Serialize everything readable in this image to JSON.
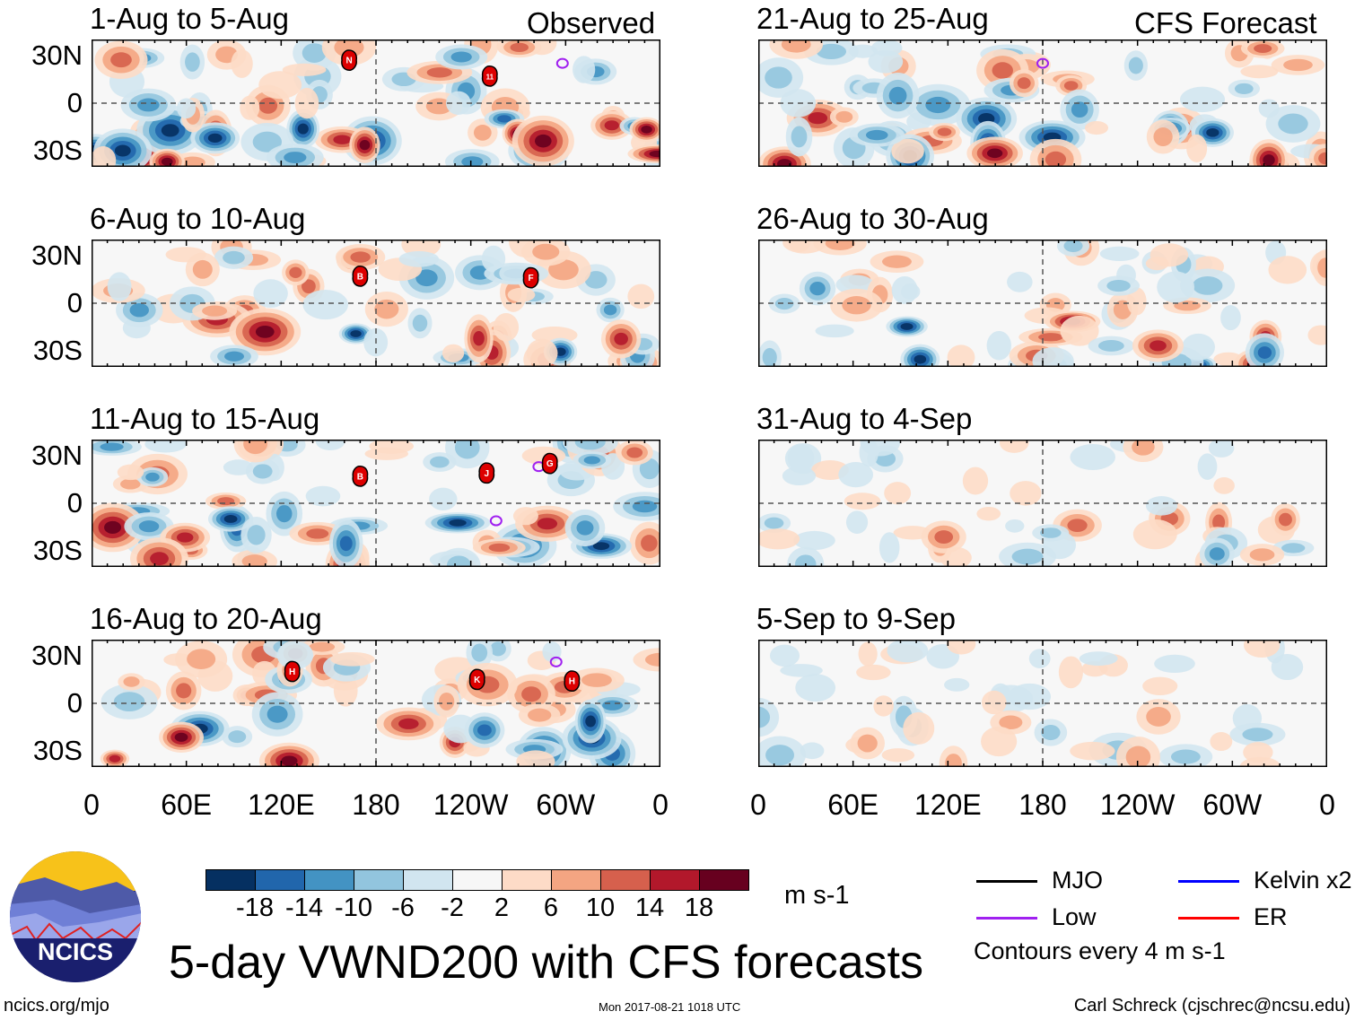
{
  "figure_title": "5-day VWND200 with CFS forecasts",
  "column_labels": {
    "observed": "Observed",
    "forecast": "CFS Forecast"
  },
  "panels": [
    {
      "title": "1-Aug to 5-Aug",
      "group": "observed",
      "amplitude": 1.0,
      "storms": [
        {
          "label": "N",
          "lon": 163,
          "lat": 27
        },
        {
          "label": "11",
          "lon": 252,
          "lat": 17
        }
      ],
      "lows": [
        {
          "lon": 298,
          "lat": 25
        }
      ]
    },
    {
      "title": "6-Aug to 10-Aug",
      "group": "observed",
      "amplitude": 1.0,
      "storms": [
        {
          "label": "B",
          "lon": 170,
          "lat": 17
        },
        {
          "label": "F",
          "lon": 278,
          "lat": 16
        }
      ],
      "lows": []
    },
    {
      "title": "11-Aug to 15-Aug",
      "group": "observed",
      "amplitude": 1.0,
      "storms": [
        {
          "label": "B",
          "lon": 170,
          "lat": 17
        },
        {
          "label": "J",
          "lon": 250,
          "lat": 19
        },
        {
          "label": "G",
          "lon": 290,
          "lat": 25
        }
      ],
      "lows": [
        {
          "lon": 283,
          "lat": 23
        },
        {
          "lon": 256,
          "lat": -11
        }
      ]
    },
    {
      "title": "16-Aug to 20-Aug",
      "group": "observed",
      "amplitude": 1.0,
      "storms": [
        {
          "label": "H",
          "lon": 127,
          "lat": 20
        },
        {
          "label": "K",
          "lon": 244,
          "lat": 15
        },
        {
          "label": "H",
          "lon": 304,
          "lat": 14
        }
      ],
      "lows": [
        {
          "lon": 294,
          "lat": 26
        }
      ]
    },
    {
      "title": "21-Aug to 25-Aug",
      "group": "forecast",
      "amplitude": 0.9,
      "storms": [],
      "lows": [
        {
          "lon": 180,
          "lat": 25
        }
      ]
    },
    {
      "title": "26-Aug to 30-Aug",
      "group": "forecast",
      "amplitude": 0.75,
      "storms": [],
      "lows": []
    },
    {
      "title": "31-Aug to 4-Sep",
      "group": "forecast",
      "amplitude": 0.45,
      "storms": [],
      "lows": []
    },
    {
      "title": "5-Sep to 9-Sep",
      "group": "forecast",
      "amplitude": 0.35,
      "storms": [],
      "lows": []
    }
  ],
  "lat_labels": [
    "30N",
    "0",
    "30S"
  ],
  "lon_labels": [
    "0",
    "60E",
    "120E",
    "180",
    "120W",
    "60W",
    "0"
  ],
  "colorbar": {
    "colors": [
      "#053061",
      "#2166ac",
      "#4393c3",
      "#92c5de",
      "#d1e5f0",
      "#f7f7f7",
      "#fddbc7",
      "#f4a582",
      "#d6604d",
      "#b2182b",
      "#67001f"
    ],
    "ticks": [
      "-18",
      "-14",
      "-10",
      "-6",
      "-2",
      "2",
      "6",
      "10",
      "14",
      "18"
    ],
    "units": "m s-1"
  },
  "legend": {
    "items": [
      {
        "label": "MJO",
        "color": "#000000"
      },
      {
        "label": "Kelvin x2",
        "color": "#0000ff"
      },
      {
        "label": "Low",
        "color": "#a020f0"
      },
      {
        "label": "ER",
        "color": "#ff0000"
      }
    ],
    "contour_note": "Contours every 4 m s-1"
  },
  "logo_text": "NCICS",
  "footer": {
    "url": "ncics.org/mjo",
    "timestamp": "Mon 2017-08-21 1018 UTC",
    "author": "Carl Schreck (cjschrec@ncsu.edu)"
  }
}
